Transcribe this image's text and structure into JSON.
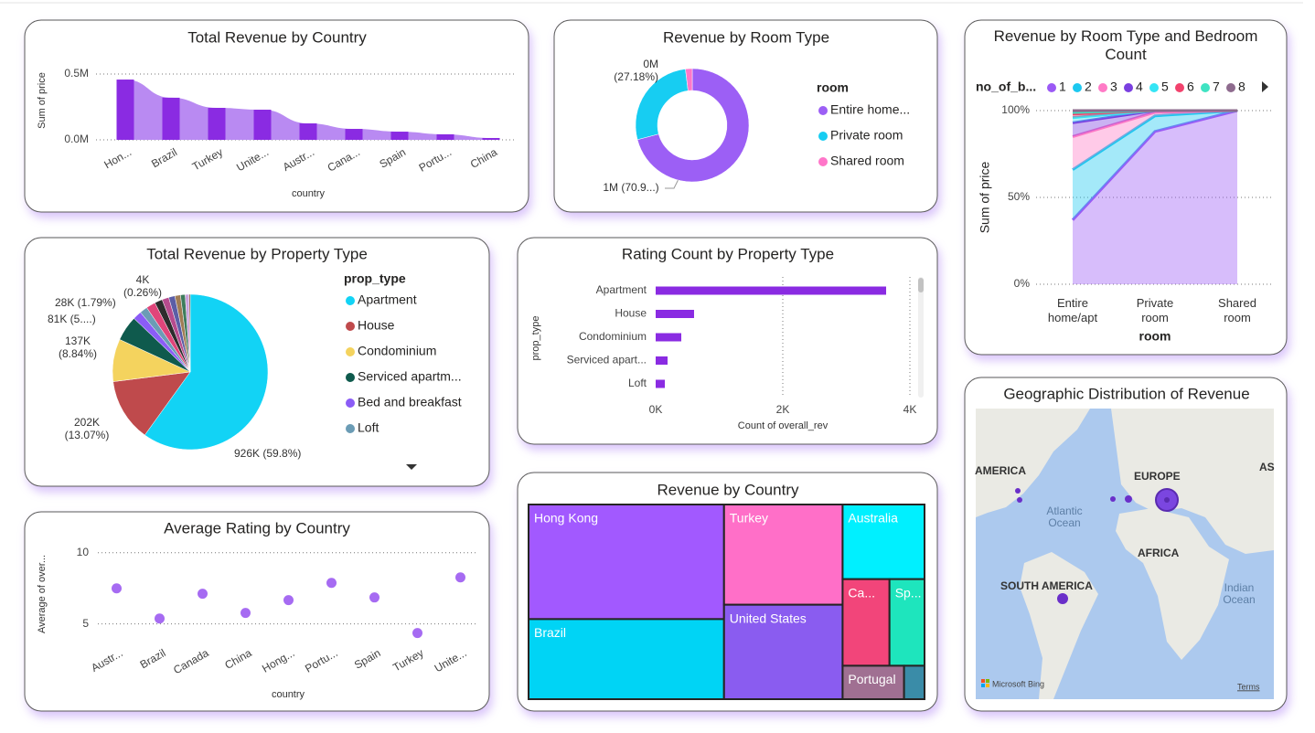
{
  "chart_data": [
    {
      "type": "bar",
      "title": "Total Revenue by Country",
      "x_label": "country",
      "y_label": "Sum of price",
      "categories": [
        "Hon...",
        "Brazil",
        "Turkey",
        "Unite...",
        "Austr...",
        "Cana...",
        "Spain",
        "Portu...",
        "China"
      ],
      "values": [
        458000,
        320000,
        243000,
        229000,
        125000,
        83000,
        62000,
        42000,
        14000
      ],
      "color": "#8a2be2",
      "area_color": "#b98af2",
      "ylim": [
        0,
        500000
      ],
      "yticks": [
        {
          "value": 0,
          "label": "0.0M"
        },
        {
          "value": 500000,
          "label": "0.5M"
        }
      ],
      "grid": true
    },
    {
      "type": "donut",
      "title": "Revenue by Room Type",
      "legend_title": "room",
      "categories": [
        "Entire home...",
        "Private room",
        "Shared room"
      ],
      "values": [
        70.9,
        27.18,
        1.92
      ],
      "value_labels": [
        "1M (70.9...)",
        "0M (27.18%)",
        null
      ],
      "colors": [
        "#9c5ff5",
        "#17cdf2",
        "#ff76c9"
      ]
    },
    {
      "type": "stacked_area",
      "title": "Revenue by Room Type and Bedroom Count",
      "legend_title": "no_of_b...",
      "x_label": "room",
      "y_label": "Sum of price",
      "categories": [
        "Entire home/apt",
        "Private room",
        "Shared room"
      ],
      "ylim": [
        0,
        100
      ],
      "yticks": [
        {
          "value": 0,
          "label": "0%"
        },
        {
          "value": 50,
          "label": "50%"
        },
        {
          "value": 100,
          "label": "100%"
        }
      ],
      "grid": true,
      "series": [
        {
          "name": "1",
          "color": "#9b59f5",
          "values": [
            37,
            88,
            100
          ]
        },
        {
          "name": "2",
          "color": "#1cc8f0",
          "values": [
            29,
            9,
            0
          ]
        },
        {
          "name": "3",
          "color": "#ff7ac6",
          "values": [
            19,
            2,
            0
          ]
        },
        {
          "name": "4",
          "color": "#7a3fe0",
          "values": [
            8,
            1,
            0
          ]
        },
        {
          "name": "5",
          "color": "#35e5f5",
          "values": [
            3,
            0,
            0
          ]
        },
        {
          "name": "6",
          "color": "#f2426d",
          "values": [
            2,
            0,
            0
          ]
        },
        {
          "name": "7",
          "color": "#3fe3c2",
          "values": [
            1,
            0,
            0
          ]
        },
        {
          "name": "8",
          "color": "#8e6b8e",
          "values": [
            1,
            0,
            0
          ]
        }
      ]
    },
    {
      "type": "pie",
      "title": "Total Revenue by Property Type",
      "legend_title": "prop_type",
      "categories": [
        "Apartment",
        "House",
        "Condominium",
        "Serviced apartm...",
        "Bed and breakfast",
        "Loft",
        null,
        null,
        null,
        null,
        null,
        null,
        null,
        null
      ],
      "values": [
        926,
        202,
        137,
        81,
        28,
        25,
        30,
        25,
        22,
        20,
        18,
        15,
        12,
        4
      ],
      "value_labels": [
        "926K (59.8%)",
        "202K (13.07%)",
        "137K (8.84%)",
        "81K (5....)",
        "28K (1.79%)",
        null,
        null,
        null,
        null,
        null,
        null,
        null,
        null,
        "4K (0.26%)"
      ],
      "colors": [
        "#12d3f5",
        "#bf4a4c",
        "#f4d35e",
        "#0f5a4d",
        "#8b5cf6",
        "#6b9cb5",
        "#e0457a",
        "#2c2c2c",
        "#b64b8d",
        "#5b5ea6",
        "#a07c55",
        "#3e7c5d",
        "#c9a0dc",
        "#7a4a2a"
      ]
    },
    {
      "type": "hbar",
      "title": "Rating Count by Property Type",
      "x_label": "Count of overall_rev",
      "y_label": "prop_type",
      "categories": [
        "Apartment",
        "House",
        "Condominium",
        "Serviced apart...",
        "Loft"
      ],
      "values": [
        3626,
        604,
        403,
        187,
        144
      ],
      "color": "#8a2be2",
      "xlim": [
        0,
        4000
      ],
      "xticks": [
        {
          "value": 0,
          "label": "0K"
        },
        {
          "value": 2000,
          "label": "2K"
        },
        {
          "value": 4000,
          "label": "4K"
        }
      ],
      "grid": true
    },
    {
      "type": "dot",
      "title": "Average Rating by Country",
      "x_label": "country",
      "y_label": "Average of over...",
      "categories": [
        "Austr...",
        "Brazil",
        "Canada",
        "China",
        "Hong...",
        "Portu...",
        "Spain",
        "Turkey",
        "Unite..."
      ],
      "values": [
        7.5,
        5.38,
        7.12,
        5.77,
        6.67,
        7.88,
        6.86,
        4.36,
        8.27
      ],
      "color": "#a66bf2",
      "ylim": [
        3.5,
        10.5
      ],
      "yticks": [
        5,
        10
      ],
      "grid": true
    },
    {
      "type": "treemap",
      "title": "Revenue by Country",
      "categories": [
        "Hong Kong",
        "Brazil",
        "Turkey",
        "United States",
        "Australia",
        "Ca...",
        "Sp...",
        "Portugal",
        null
      ],
      "values": [
        458000,
        320000,
        243000,
        229000,
        125000,
        83000,
        62000,
        42000,
        14000
      ],
      "colors": [
        "#a259ff",
        "#00d4f5",
        "#ff6fc8",
        "#8a5cf0",
        "#00f0ff",
        "#f2457a",
        "#1ee5bd",
        "#a07092",
        "#3a8ca8"
      ]
    },
    {
      "type": "map",
      "title": "Geographic Distribution of Revenue",
      "place_labels": [
        "AMERICA",
        "EUROPE",
        "AS",
        "Atlantic Ocean",
        "AFRICA",
        "SOUTH AMERICA",
        "Indian Ocean"
      ],
      "attribution": "Microsoft Bing",
      "link": "Terms"
    }
  ]
}
